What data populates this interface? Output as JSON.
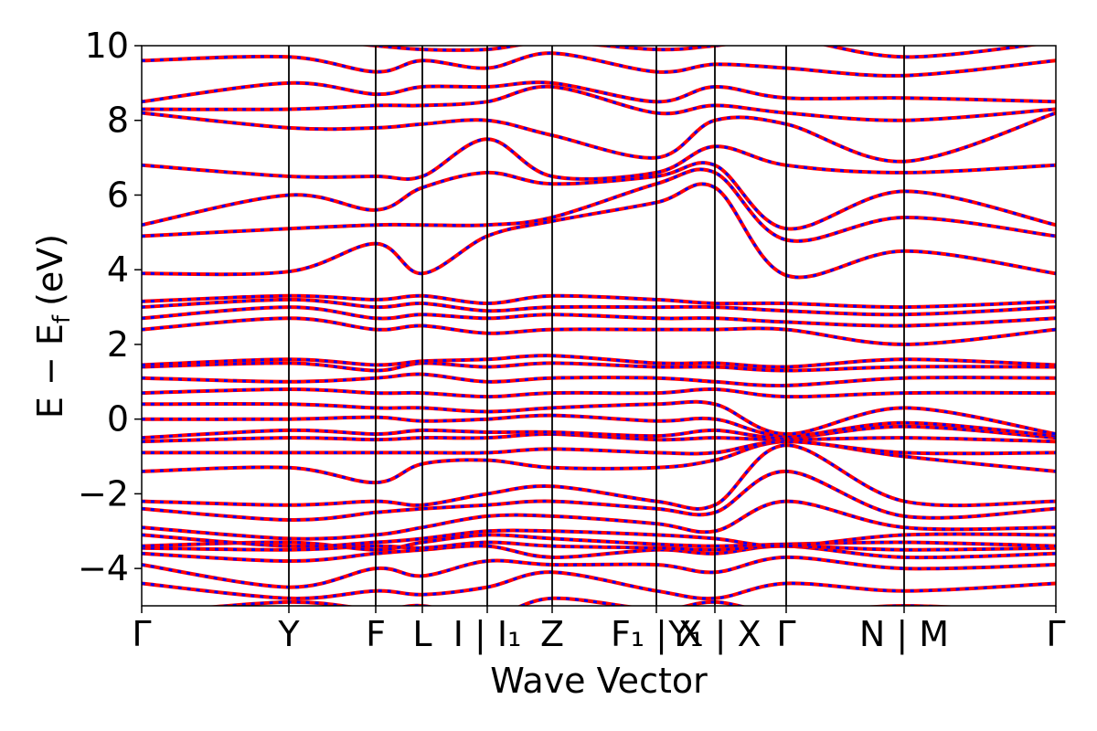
{
  "chart_data": {
    "type": "line",
    "title": "",
    "xlabel": "Wave Vector",
    "ylabel": "E − E",
    "ylabel_sub": "f",
    "ylabel_unit": "(eV)",
    "ylim": [
      -5,
      10
    ],
    "yticks": [
      -4,
      -2,
      0,
      2,
      4,
      6,
      8,
      10
    ],
    "ytick_labels": [
      "−4",
      "−2",
      "0",
      "2",
      "4",
      "6",
      "8",
      "10"
    ],
    "kpath_ticks": [
      {
        "k": 0.0,
        "label": "Γ"
      },
      {
        "k": 0.161,
        "label": "Y"
      },
      {
        "k": 0.256,
        "label": "F"
      },
      {
        "k": 0.307,
        "label": "L"
      },
      {
        "k": 0.378,
        "label": "I | ",
        "italic_part": "I",
        "sub": "1"
      },
      {
        "k": 0.449,
        "label": "Z"
      },
      {
        "k": 0.563,
        "label": "",
        "italic_part": "F",
        "sub": "1",
        "suffix": " | X"
      },
      {
        "k": 0.627,
        "label": "Y",
        "extra": "",
        "sub": "1",
        "suffix": " | X"
      },
      {
        "k": 0.705,
        "label": "Γ"
      },
      {
        "k": 0.834,
        "label": "N | M"
      },
      {
        "k": 1.0,
        "label": "Γ"
      }
    ],
    "kpath_display": [
      {
        "k": 0.0,
        "text": "Γ"
      },
      {
        "k": 0.161,
        "text": "Y"
      },
      {
        "k": 0.256,
        "text": "F"
      },
      {
        "k": 0.307,
        "text": "L"
      },
      {
        "k": 0.378,
        "text": "I | I₁"
      },
      {
        "k": 0.449,
        "text": "Z"
      },
      {
        "k": 0.563,
        "text": "F₁ | X"
      },
      {
        "k": 0.627,
        "text": "Y₁ | X"
      },
      {
        "k": 0.705,
        "text": "Γ"
      },
      {
        "k": 0.834,
        "text": "N | M"
      },
      {
        "k": 1.0,
        "text": "Γ"
      }
    ],
    "series": [
      {
        "name": "",
        "color": "#ff0000",
        "style": "solid"
      },
      {
        "name": "",
        "color": "#0000ff",
        "style": "dashed"
      }
    ],
    "bands_k": [
      0.0,
      0.161,
      0.256,
      0.307,
      0.378,
      0.449,
      0.563,
      0.627,
      0.705,
      0.834,
      1.0
    ],
    "bands": [
      [
        -5.2,
        -4.9,
        -5.1,
        -5.0,
        -5.3,
        -4.8,
        -5.1,
        -4.9,
        -5.2,
        -5.0,
        -5.2
      ],
      [
        -4.4,
        -4.8,
        -4.6,
        -4.7,
        -4.5,
        -4.1,
        -4.6,
        -4.8,
        -4.4,
        -4.6,
        -4.4
      ],
      [
        -3.9,
        -4.5,
        -4.0,
        -4.2,
        -3.8,
        -3.9,
        -3.9,
        -4.1,
        -3.7,
        -4.0,
        -3.9
      ],
      [
        -3.6,
        -3.8,
        -3.6,
        -3.5,
        -3.4,
        -3.7,
        -3.5,
        -3.6,
        -3.4,
        -3.7,
        -3.6
      ],
      [
        -3.45,
        -3.5,
        -3.4,
        -3.45,
        -3.3,
        -3.4,
        -3.45,
        -3.5,
        -3.4,
        -3.5,
        -3.45
      ],
      [
        -3.4,
        -3.3,
        -3.5,
        -3.3,
        -3.1,
        -3.2,
        -3.35,
        -3.4,
        -3.35,
        -3.3,
        -3.4
      ],
      [
        -3.1,
        -3.4,
        -3.3,
        -3.2,
        -3.0,
        -3.0,
        -3.1,
        -3.2,
        -3.4,
        -3.1,
        -3.1
      ],
      [
        -2.9,
        -3.2,
        -3.1,
        -2.9,
        -2.6,
        -2.6,
        -2.8,
        -3.0,
        -2.2,
        -2.9,
        -2.9
      ],
      [
        -2.4,
        -2.7,
        -2.5,
        -2.4,
        -2.3,
        -2.2,
        -2.4,
        -2.5,
        -1.4,
        -2.6,
        -2.4
      ],
      [
        -2.2,
        -2.3,
        -2.2,
        -2.3,
        -2.0,
        -1.8,
        -2.2,
        -2.3,
        -0.7,
        -2.2,
        -2.2
      ],
      [
        -1.4,
        -1.3,
        -1.7,
        -1.2,
        -1.1,
        -1.3,
        -1.3,
        -1.1,
        -0.6,
        -1.0,
        -1.4
      ],
      [
        -0.9,
        -0.9,
        -0.9,
        -0.9,
        -0.9,
        -0.8,
        -0.9,
        -0.9,
        -0.6,
        -0.9,
        -0.9
      ],
      [
        -0.6,
        -0.5,
        -0.55,
        -0.5,
        -0.5,
        -0.4,
        -0.55,
        -0.5,
        -0.55,
        -0.5,
        -0.6
      ],
      [
        -0.5,
        -0.3,
        -0.4,
        -0.3,
        -0.35,
        -0.35,
        -0.45,
        -0.3,
        -0.5,
        -0.2,
        -0.5
      ],
      [
        0.0,
        0.0,
        0.05,
        -0.05,
        0.0,
        0.1,
        -0.05,
        0.0,
        -0.45,
        -0.1,
        -0.45
      ],
      [
        0.4,
        0.4,
        0.3,
        0.3,
        0.2,
        0.3,
        0.4,
        0.4,
        -0.4,
        0.3,
        -0.4
      ],
      [
        0.7,
        0.8,
        0.7,
        0.7,
        0.6,
        0.7,
        0.7,
        0.8,
        0.6,
        0.7,
        0.7
      ],
      [
        1.1,
        1.0,
        1.1,
        1.2,
        1.0,
        1.1,
        1.1,
        1.0,
        0.9,
        1.1,
        1.1
      ],
      [
        1.4,
        1.5,
        1.3,
        1.5,
        1.4,
        1.5,
        1.4,
        1.4,
        1.3,
        1.4,
        1.4
      ],
      [
        1.45,
        1.6,
        1.45,
        1.55,
        1.6,
        1.7,
        1.5,
        1.5,
        1.4,
        1.6,
        1.45
      ],
      [
        2.4,
        2.7,
        2.4,
        2.5,
        2.3,
        2.4,
        2.4,
        2.4,
        2.4,
        2.0,
        2.4
      ],
      [
        2.7,
        3.0,
        2.7,
        2.8,
        2.7,
        2.8,
        2.7,
        2.7,
        2.6,
        2.5,
        2.7
      ],
      [
        3.0,
        3.2,
        3.0,
        3.1,
        2.9,
        3.0,
        3.0,
        3.0,
        2.9,
        2.8,
        3.0
      ],
      [
        3.15,
        3.3,
        3.2,
        3.3,
        3.1,
        3.3,
        3.2,
        3.1,
        3.1,
        3.0,
        3.15
      ],
      [
        3.9,
        3.95,
        4.7,
        3.9,
        4.9,
        5.3,
        5.8,
        6.2,
        3.85,
        4.5,
        3.9
      ],
      [
        4.9,
        5.1,
        5.2,
        5.2,
        5.2,
        5.4,
        6.3,
        6.6,
        4.8,
        5.4,
        4.9
      ],
      [
        5.2,
        6.0,
        5.6,
        6.2,
        6.6,
        6.3,
        6.5,
        6.8,
        5.1,
        6.1,
        5.2
      ],
      [
        6.8,
        6.5,
        6.5,
        6.5,
        7.5,
        6.5,
        6.6,
        7.3,
        6.8,
        6.6,
        6.8
      ],
      [
        8.2,
        7.8,
        7.8,
        7.9,
        8.0,
        7.6,
        7.0,
        8.0,
        7.9,
        6.9,
        8.2
      ],
      [
        8.3,
        8.3,
        8.4,
        8.4,
        8.5,
        8.9,
        8.2,
        8.4,
        8.2,
        8.0,
        8.3
      ],
      [
        8.5,
        9.0,
        8.7,
        8.9,
        8.9,
        9.0,
        8.5,
        8.9,
        8.6,
        8.6,
        8.5
      ],
      [
        9.6,
        9.7,
        9.3,
        9.6,
        9.4,
        9.8,
        9.3,
        9.5,
        9.4,
        9.2,
        9.6
      ],
      [
        10.1,
        10.2,
        10.0,
        9.9,
        9.9,
        10.1,
        9.9,
        10.0,
        10.2,
        9.7,
        10.1
      ]
    ]
  }
}
